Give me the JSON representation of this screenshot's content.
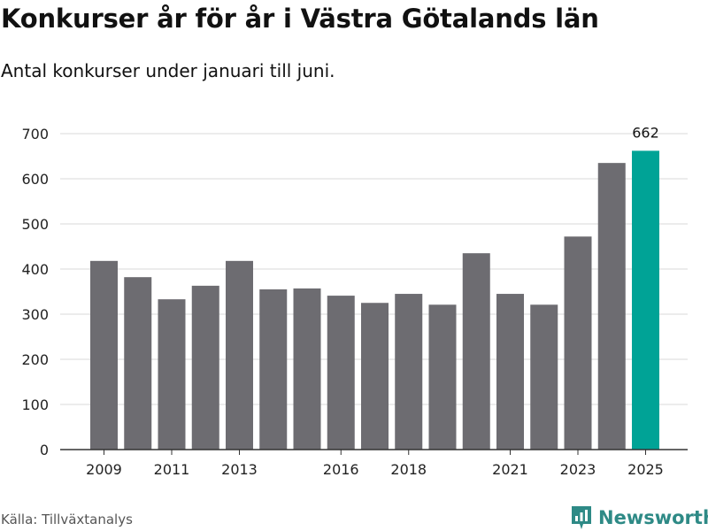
{
  "header": {
    "title": "Konkurser år för år i Västra Götalands län",
    "subtitle": "Antal konkurser under januari till juni."
  },
  "footer": {
    "source": "Källa: Tillväxtanalys",
    "brand": "Newsworthy",
    "brand_icon": "newsworthy-logo-icon"
  },
  "colors": {
    "bar": "#6d6c71",
    "highlight": "#00a396",
    "grid": "#d9d9d9",
    "brand": "#2e8a86"
  },
  "chart_data": {
    "type": "bar",
    "categories": [
      "2009",
      "2010",
      "2011",
      "2012",
      "2013",
      "2014",
      "2015",
      "2016",
      "2017",
      "2018",
      "2019",
      "2020",
      "2021",
      "2022",
      "2023",
      "2024",
      "2025"
    ],
    "values": [
      418,
      382,
      333,
      363,
      418,
      355,
      357,
      341,
      325,
      345,
      321,
      435,
      345,
      321,
      472,
      635,
      662
    ],
    "highlight_category": "2025",
    "value_labels": [
      {
        "category": "2025",
        "text": "662"
      }
    ],
    "x_tick_labels": [
      "2009",
      "2011",
      "2013",
      "2016",
      "2018",
      "2021",
      "2023",
      "2025"
    ],
    "y_ticks": [
      0,
      100,
      200,
      300,
      400,
      500,
      600,
      700
    ],
    "ylim": [
      0,
      700
    ],
    "grid": true,
    "xlabel": "",
    "ylabel": ""
  }
}
